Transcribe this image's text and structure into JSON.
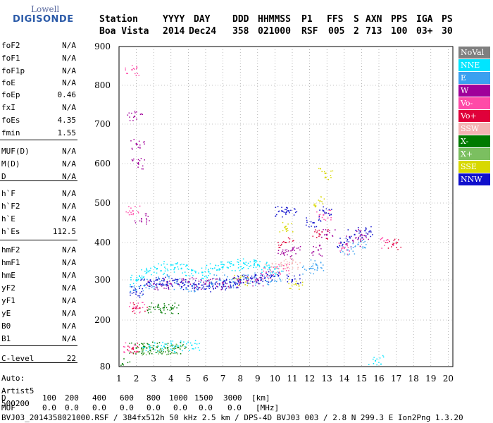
{
  "logo": {
    "line1": "Lowell",
    "line2": "DIGISONDE"
  },
  "header": {
    "labels": [
      "Station",
      "YYYY",
      "DAY",
      "DDD",
      "HHMMSS",
      "P1",
      "FFS",
      "S",
      "AXN",
      "PPS",
      "IGA",
      "PS"
    ],
    "values": [
      "Boa Vista",
      "2014",
      "Dec24",
      "358",
      "021000",
      "RSF",
      "005",
      "2",
      "713",
      "100",
      "03+",
      "30"
    ]
  },
  "params": [
    {
      "name": "foF2",
      "value": "N/A"
    },
    {
      "name": "foF1",
      "value": "N/A"
    },
    {
      "name": "foF1p",
      "value": "N/A"
    },
    {
      "name": "foE",
      "value": "N/A"
    },
    {
      "name": "foEp",
      "value": "0.46"
    },
    {
      "name": "fxI",
      "value": "N/A"
    },
    {
      "name": "foEs",
      "value": "4.35"
    },
    {
      "name": "fmin",
      "value": "1.55"
    },
    {
      "name": "MUF(D)",
      "value": "N/A"
    },
    {
      "name": "M(D)",
      "value": "N/A"
    },
    {
      "name": "D",
      "value": "N/A"
    },
    {
      "name": "h`F",
      "value": "N/A"
    },
    {
      "name": "h`F2",
      "value": "N/A"
    },
    {
      "name": "h`E",
      "value": "N/A"
    },
    {
      "name": "h`Es",
      "value": "112.5"
    },
    {
      "name": "hmF2",
      "value": "N/A"
    },
    {
      "name": "hmF1",
      "value": "N/A"
    },
    {
      "name": "hmE",
      "value": "N/A"
    },
    {
      "name": "yF2",
      "value": "N/A"
    },
    {
      "name": "yF1",
      "value": "N/A"
    },
    {
      "name": "yE",
      "value": "N/A"
    },
    {
      "name": "B0",
      "value": "N/A"
    },
    {
      "name": "B1",
      "value": "N/A"
    },
    {
      "name": "C-level",
      "value": "22"
    }
  ],
  "auto": {
    "label": "Auto:",
    "software": "Artist5",
    "version": "500200"
  },
  "legend": [
    {
      "label": "NoVal",
      "color": "#7f7f7f"
    },
    {
      "label": "NNE",
      "color": "#00e5ff"
    },
    {
      "label": "E",
      "color": "#3aa0f0"
    },
    {
      "label": "W",
      "color": "#a0009a"
    },
    {
      "label": "Vo-",
      "color": "#ff4aa8"
    },
    {
      "label": "Vo+",
      "color": "#e0003a"
    },
    {
      "label": "SSW",
      "color": "#f4b3b3"
    },
    {
      "label": "X-",
      "color": "#007a00"
    },
    {
      "label": "X+",
      "color": "#7bbf60"
    },
    {
      "label": "SSE",
      "color": "#d8d800"
    },
    {
      "label": "NNW",
      "color": "#1010cc"
    }
  ],
  "bottom": {
    "d_label": "D",
    "d_values": [
      "100",
      "200",
      "400",
      "600",
      "800",
      "1000",
      "1500",
      "3000",
      "[km]"
    ],
    "muf_label": "MUF",
    "muf_values": [
      "0.0",
      "0.0",
      "0.0",
      "0.0",
      "0.0",
      "0.0",
      "0.0",
      "0.0",
      "[MHz]"
    ],
    "footer": "BVJ03_2014358021000.RSF / 384fx512h 50 kHz 2.5 km / DPS-4D BVJ03 003 / 2.8 N 299.3 E Ion2Png 1.3.20"
  },
  "chart_data": {
    "type": "scatter",
    "xlabel": "",
    "ylabel": "",
    "xlim": [
      1,
      20
    ],
    "ylim": [
      80,
      900
    ],
    "xticks": [
      1,
      2,
      3,
      4,
      5,
      6,
      7,
      8,
      9,
      10,
      11,
      12,
      13,
      14,
      15,
      16,
      17,
      18,
      19,
      20
    ],
    "yticks": [
      80,
      200,
      300,
      400,
      500,
      600,
      700,
      800,
      900
    ],
    "grid": true,
    "series": [
      {
        "name": "NNE",
        "color": "#00e5ff",
        "points": [
          [
            2.0,
            300
          ],
          [
            2.6,
            320
          ],
          [
            3.2,
            330
          ],
          [
            4.0,
            340
          ],
          [
            4.6,
            330
          ],
          [
            5.2,
            325
          ],
          [
            5.8,
            320
          ],
          [
            6.4,
            330
          ],
          [
            7.0,
            335
          ],
          [
            7.6,
            340
          ],
          [
            8.2,
            345
          ],
          [
            8.8,
            340
          ],
          [
            9.4,
            335
          ],
          [
            10.0,
            330
          ],
          [
            2.8,
            130
          ],
          [
            3.6,
            132
          ],
          [
            4.4,
            133
          ],
          [
            5.2,
            135
          ],
          [
            15.8,
            95
          ]
        ]
      },
      {
        "name": "E",
        "color": "#3aa0f0",
        "points": [
          [
            2.0,
            275
          ],
          [
            2.8,
            290
          ],
          [
            3.6,
            300
          ],
          [
            4.4,
            290
          ],
          [
            5.2,
            285
          ],
          [
            6.0,
            290
          ],
          [
            6.8,
            300
          ],
          [
            7.6,
            295
          ],
          [
            8.4,
            305
          ],
          [
            9.2,
            300
          ],
          [
            10.0,
            310
          ],
          [
            12.0,
            330
          ],
          [
            12.4,
            340
          ],
          [
            14.2,
            380
          ],
          [
            14.8,
            395
          ]
        ]
      },
      {
        "name": "W",
        "color": "#a0009a",
        "points": [
          [
            1.9,
            720
          ],
          [
            2.0,
            650
          ],
          [
            2.1,
            600
          ],
          [
            2.3,
            460
          ],
          [
            3.0,
            290
          ],
          [
            4.0,
            290
          ],
          [
            5.0,
            295
          ],
          [
            6.0,
            290
          ],
          [
            7.0,
            290
          ],
          [
            8.0,
            295
          ],
          [
            9.0,
            300
          ],
          [
            10.5,
            370
          ],
          [
            11.0,
            380
          ],
          [
            12.5,
            380
          ],
          [
            13.0,
            420
          ],
          [
            14.5,
            405
          ],
          [
            15.0,
            420
          ]
        ]
      },
      {
        "name": "Vo-",
        "color": "#ff4aa8",
        "points": [
          [
            1.75,
            840
          ],
          [
            1.8,
            480
          ],
          [
            2.0,
            232
          ],
          [
            1.6,
            130
          ],
          [
            9.5,
            320
          ],
          [
            10.5,
            330
          ],
          [
            12.8,
            470
          ],
          [
            14.0,
            385
          ],
          [
            16.5,
            400
          ]
        ]
      },
      {
        "name": "Vo+",
        "color": "#e0003a",
        "points": [
          [
            1.8,
            128
          ],
          [
            2.2,
            230
          ],
          [
            10.6,
            400
          ],
          [
            12.6,
            420
          ],
          [
            16.8,
            395
          ]
        ]
      },
      {
        "name": "SSW",
        "color": "#f4b3b3",
        "points": [
          [
            9.8,
            335
          ],
          [
            10.4,
            340
          ],
          [
            11.0,
            345
          ]
        ]
      },
      {
        "name": "X-",
        "color": "#007a00",
        "points": [
          [
            2.0,
            128
          ],
          [
            2.6,
            128
          ],
          [
            3.2,
            130
          ],
          [
            3.8,
            128
          ],
          [
            4.4,
            129
          ],
          [
            3.0,
            231
          ],
          [
            3.6,
            231
          ],
          [
            4.0,
            231
          ],
          [
            1.2,
            87
          ]
        ]
      },
      {
        "name": "X+",
        "color": "#7bbf60",
        "points": [
          [
            2.4,
            125
          ],
          [
            3.4,
            126
          ],
          [
            4.2,
            127
          ]
        ]
      },
      {
        "name": "SSE",
        "color": "#d8d800",
        "points": [
          [
            10.6,
            440
          ],
          [
            11.2,
            290
          ],
          [
            12.6,
            505
          ],
          [
            12.9,
            575
          ],
          [
            8.0,
            300
          ]
        ]
      },
      {
        "name": "NNW",
        "color": "#1010cc",
        "points": [
          [
            2.0,
            270
          ],
          [
            2.6,
            290
          ],
          [
            3.2,
            300
          ],
          [
            3.8,
            295
          ],
          [
            4.4,
            290
          ],
          [
            5.0,
            285
          ],
          [
            5.6,
            290
          ],
          [
            6.2,
            285
          ],
          [
            6.8,
            290
          ],
          [
            7.4,
            295
          ],
          [
            8.0,
            300
          ],
          [
            8.6,
            305
          ],
          [
            9.2,
            305
          ],
          [
            9.8,
            310
          ],
          [
            10.4,
            480
          ],
          [
            10.8,
            480
          ],
          [
            11.0,
            300
          ],
          [
            12.2,
            450
          ],
          [
            12.8,
            480
          ],
          [
            14.0,
            400
          ],
          [
            14.6,
            420
          ],
          [
            15.2,
            430
          ]
        ]
      }
    ]
  }
}
